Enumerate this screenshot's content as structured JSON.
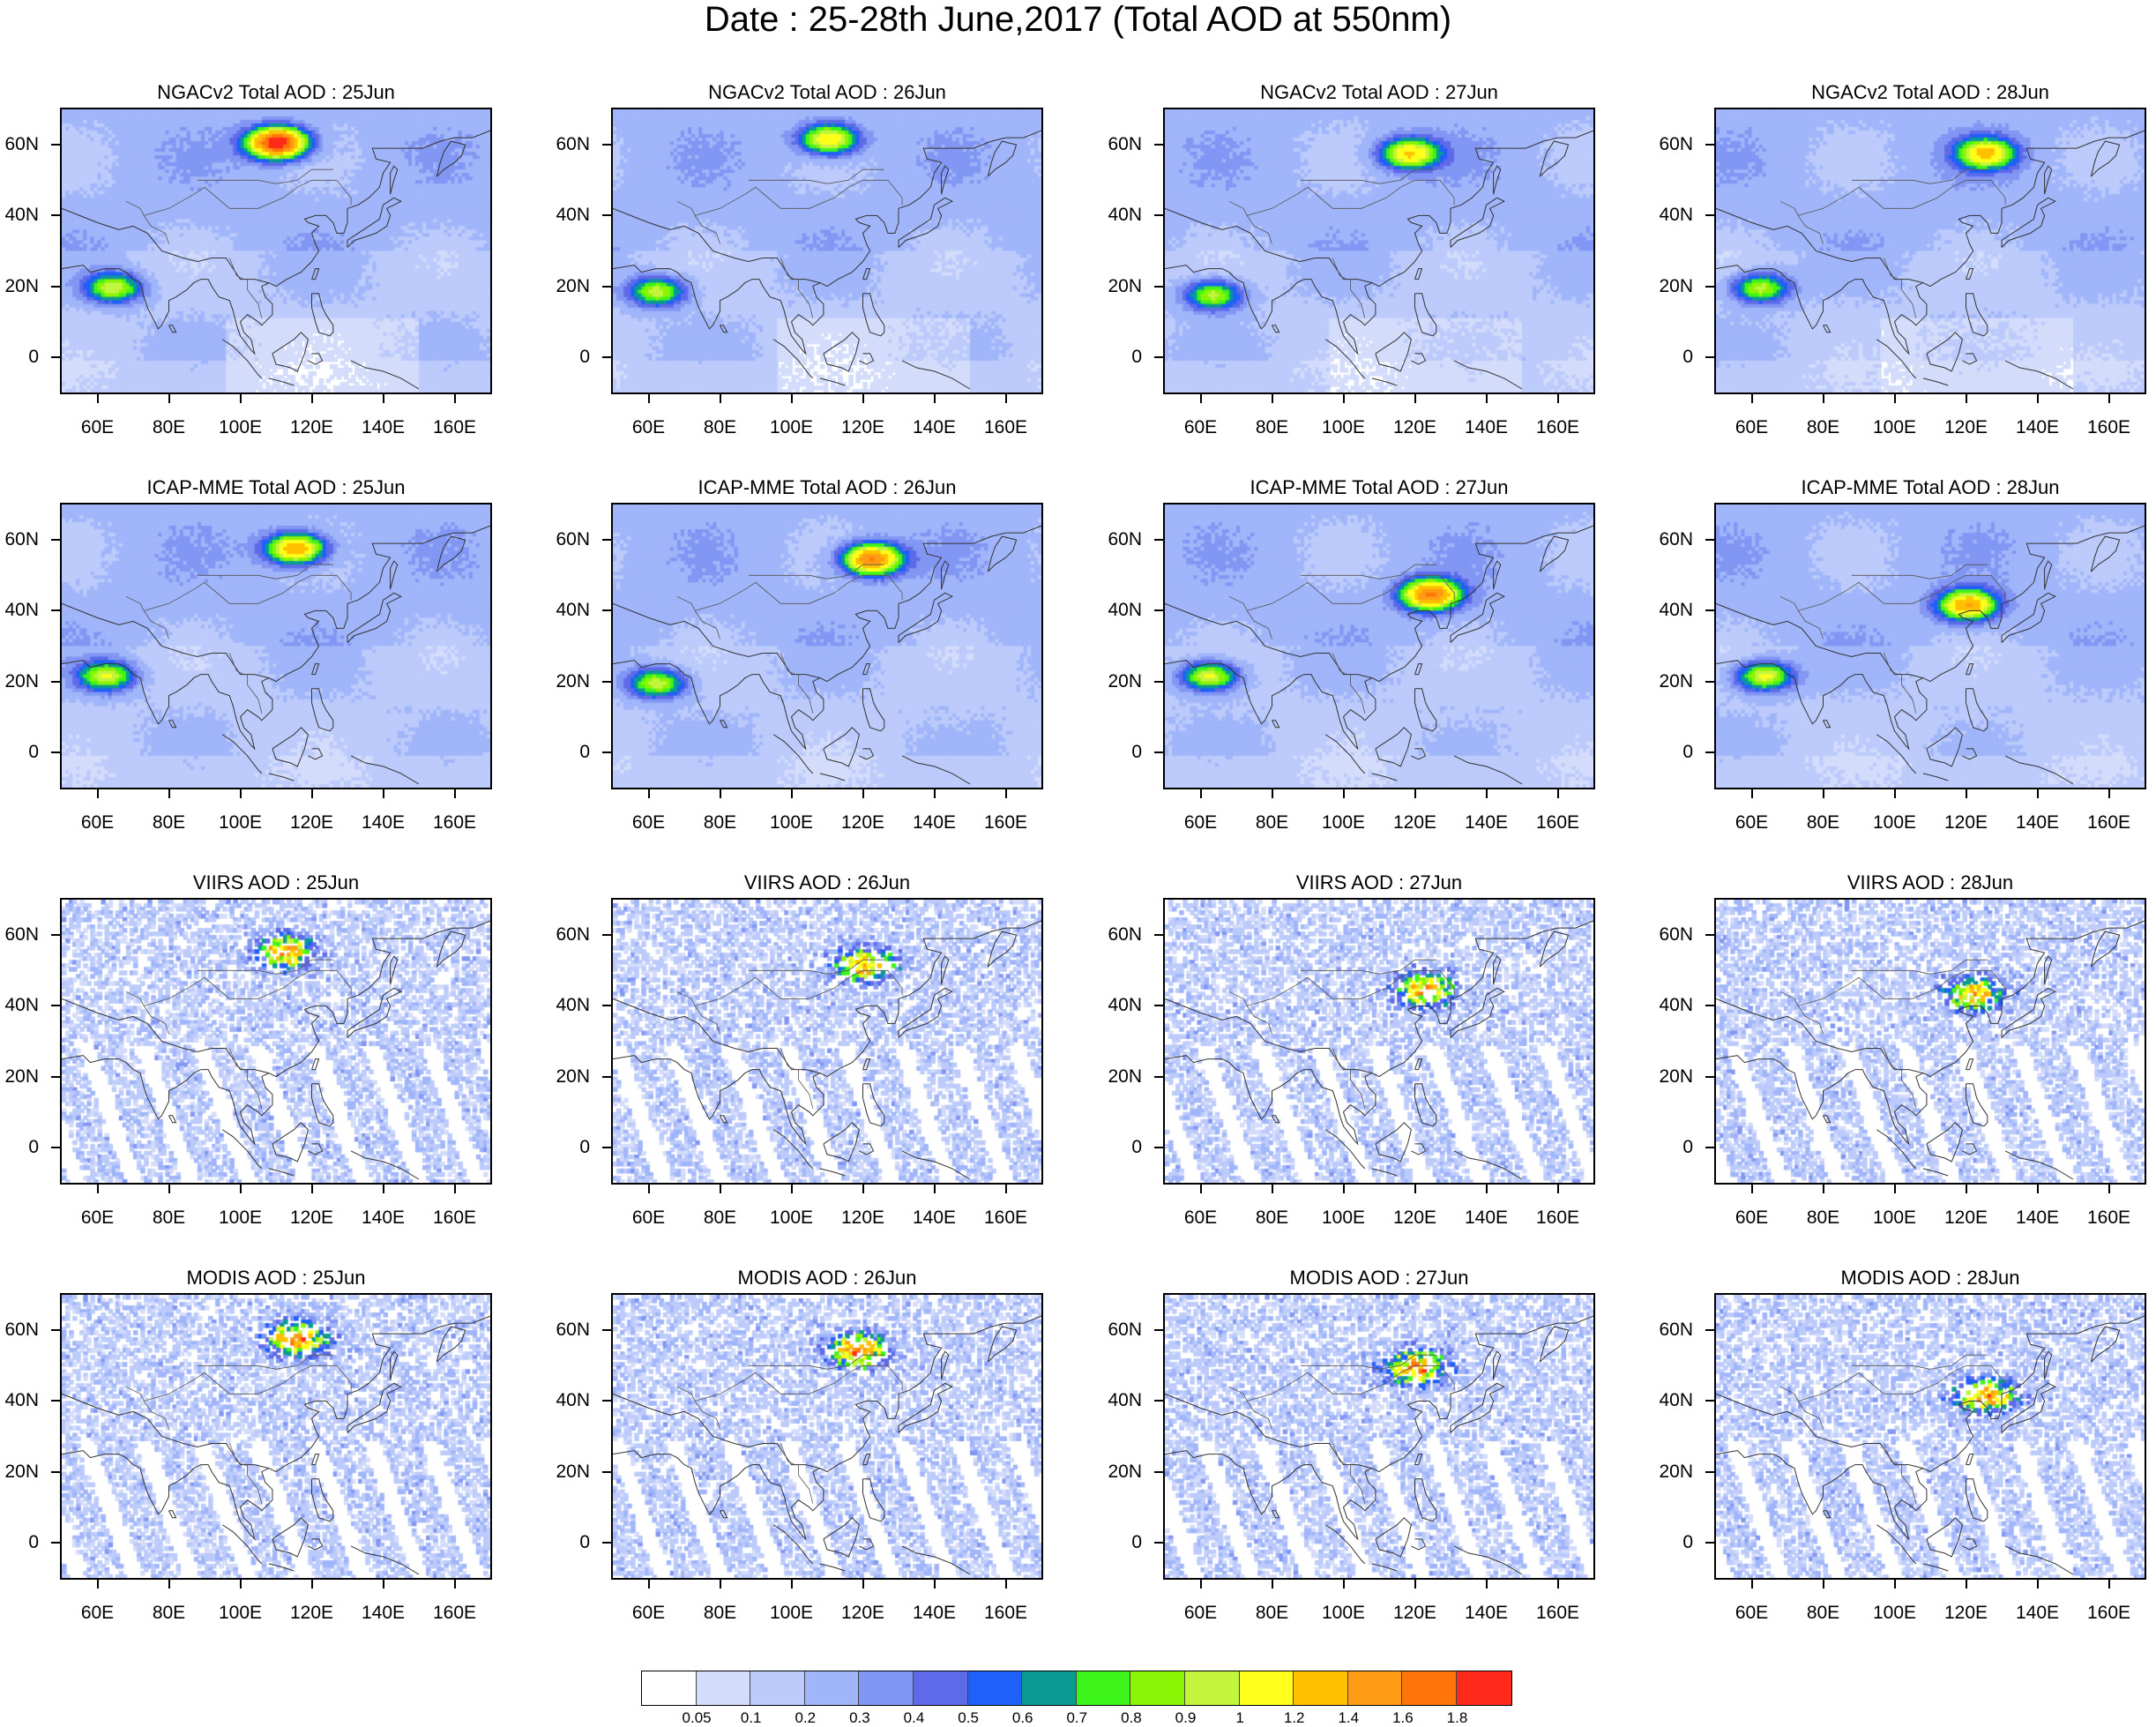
{
  "title": "Date : 25-28th June,2017 (Total AOD at 550nm)",
  "panels": [
    {
      "title": "NGACv2 Total AOD : 25Jun"
    },
    {
      "title": "NGACv2 Total AOD : 26Jun"
    },
    {
      "title": "NGACv2 Total AOD : 27Jun"
    },
    {
      "title": "NGACv2 Total AOD : 28Jun"
    },
    {
      "title": "ICAP-MME Total AOD : 25Jun"
    },
    {
      "title": "ICAP-MME Total AOD : 26Jun"
    },
    {
      "title": "ICAP-MME Total AOD : 27Jun"
    },
    {
      "title": "ICAP-MME Total AOD : 28Jun"
    },
    {
      "title": "VIIRS AOD : 25Jun"
    },
    {
      "title": "VIIRS AOD : 26Jun"
    },
    {
      "title": "VIIRS AOD : 27Jun"
    },
    {
      "title": "VIIRS AOD : 28Jun"
    },
    {
      "title": "MODIS AOD : 25Jun"
    },
    {
      "title": "MODIS AOD : 26Jun"
    },
    {
      "title": "MODIS AOD : 27Jun"
    },
    {
      "title": "MODIS AOD : 28Jun"
    }
  ],
  "chart_data": {
    "type": "heatmap",
    "title": "Date : 25-28th June,2017 (Total AOD at 550nm)",
    "variable": "Total AOD at 550nm",
    "rows": [
      "NGACv2 Total AOD",
      "ICAP-MME Total AOD",
      "VIIRS AOD",
      "MODIS AOD"
    ],
    "columns": [
      "25Jun",
      "26Jun",
      "27Jun",
      "28Jun"
    ],
    "lon_range": [
      50,
      170
    ],
    "lat_range": [
      -10,
      70
    ],
    "x_ticks": [
      "60E",
      "80E",
      "100E",
      "120E",
      "140E",
      "160E"
    ],
    "x_tick_values": [
      60,
      80,
      100,
      120,
      140,
      160
    ],
    "y_ticks": [
      "60N",
      "40N",
      "20N",
      "0"
    ],
    "y_tick_values": [
      60,
      40,
      20,
      0
    ],
    "colorbar": {
      "levels": [
        "0.05",
        "0.1",
        "0.2",
        "0.3",
        "0.4",
        "0.5",
        "0.6",
        "0.7",
        "0.8",
        "0.9",
        "1",
        "1.2",
        "1.4",
        "1.6",
        "1.8"
      ],
      "colors": [
        "#ffffff",
        "#d4dcfb",
        "#bccbfb",
        "#a1b5fa",
        "#8296f3",
        "#5e6ae8",
        "#1f5ffa",
        "#0a9a94",
        "#3ef51b",
        "#8af504",
        "#c3f53d",
        "#ffff1a",
        "#ffc000",
        "#ff9b14",
        "#ff7408",
        "#ff2a1a"
      ]
    },
    "hotspots": [
      {
        "panel": "NGACv2 Total AOD : 25Jun",
        "lon": 110,
        "lat": 61,
        "peak": 1.8
      },
      {
        "panel": "NGACv2 Total AOD : 25Jun",
        "lon": 64,
        "lat": 20,
        "peak": 0.8
      },
      {
        "panel": "NGACv2 Total AOD : 26Jun",
        "lon": 110,
        "lat": 62,
        "peak": 1.0
      },
      {
        "panel": "NGACv2 Total AOD : 26Jun",
        "lon": 62,
        "lat": 19,
        "peak": 0.8
      },
      {
        "panel": "NGACv2 Total AOD : 27Jun",
        "lon": 118,
        "lat": 58,
        "peak": 1.0
      },
      {
        "panel": "NGACv2 Total AOD : 27Jun",
        "lon": 63,
        "lat": 18,
        "peak": 0.8
      },
      {
        "panel": "NGACv2 Total AOD : 28Jun",
        "lon": 125,
        "lat": 58,
        "peak": 1.0
      },
      {
        "panel": "NGACv2 Total AOD : 28Jun",
        "lon": 62,
        "lat": 20,
        "peak": 0.8
      },
      {
        "panel": "ICAP-MME Total AOD : 25Jun",
        "lon": 115,
        "lat": 58,
        "peak": 1.2
      },
      {
        "panel": "ICAP-MME Total AOD : 25Jun",
        "lon": 62,
        "lat": 22,
        "peak": 0.8
      },
      {
        "panel": "ICAP-MME Total AOD : 26Jun",
        "lon": 122,
        "lat": 55,
        "peak": 1.4
      },
      {
        "panel": "ICAP-MME Total AOD : 26Jun",
        "lon": 62,
        "lat": 20,
        "peak": 0.8
      },
      {
        "panel": "ICAP-MME Total AOD : 27Jun",
        "lon": 124,
        "lat": 45,
        "peak": 1.4
      },
      {
        "panel": "ICAP-MME Total AOD : 27Jun",
        "lon": 62,
        "lat": 22,
        "peak": 0.9
      },
      {
        "panel": "ICAP-MME Total AOD : 28Jun",
        "lon": 120,
        "lat": 42,
        "peak": 1.2
      },
      {
        "panel": "ICAP-MME Total AOD : 28Jun",
        "lon": 63,
        "lat": 22,
        "peak": 0.9
      },
      {
        "panel": "VIIRS AOD : 25Jun",
        "lon": 112,
        "lat": 56,
        "peak": 1.2
      },
      {
        "panel": "VIIRS AOD : 26Jun",
        "lon": 120,
        "lat": 52,
        "peak": 1.2
      },
      {
        "panel": "VIIRS AOD : 27Jun",
        "lon": 122,
        "lat": 45,
        "peak": 1.2
      },
      {
        "panel": "VIIRS AOD : 28Jun",
        "lon": 122,
        "lat": 44,
        "peak": 1.2
      },
      {
        "panel": "MODIS AOD : 25Jun",
        "lon": 115,
        "lat": 58,
        "peak": 1.4
      },
      {
        "panel": "MODIS AOD : 26Jun",
        "lon": 118,
        "lat": 55,
        "peak": 1.4
      },
      {
        "panel": "MODIS AOD : 27Jun",
        "lon": 120,
        "lat": 50,
        "peak": 1.4
      },
      {
        "panel": "MODIS AOD : 28Jun",
        "lon": 125,
        "lat": 42,
        "peak": 1.4
      }
    ]
  }
}
